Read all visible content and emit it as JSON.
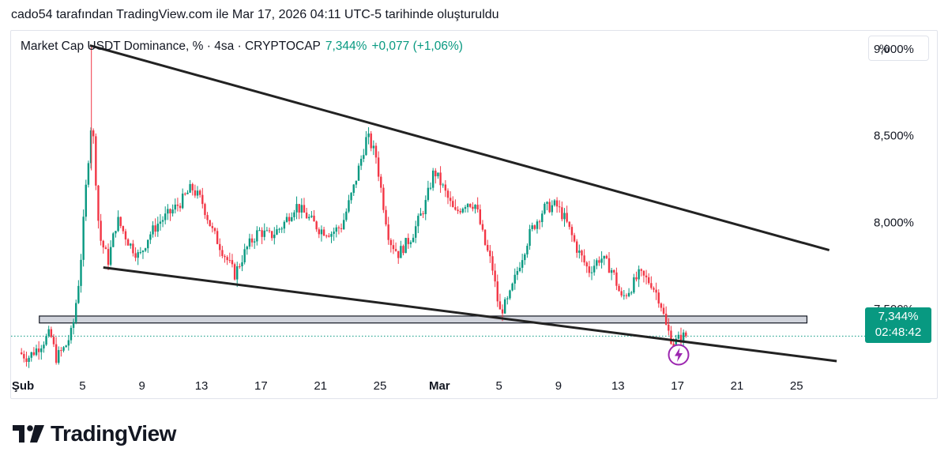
{
  "header": {
    "credit": "cado54 tarafından TradingView.com ile Mar 17, 2026 04:11 UTC-5 tarihinde oluşturuldu"
  },
  "legend": {
    "symbol": "Market Cap USDT Dominance, % · 4sa · CRYPTOCAP",
    "value": "7,344%",
    "change": "+0,077 (+1,06%)"
  },
  "scale_button": "%",
  "price_tag": {
    "value": "7,344%",
    "countdown": "02:48:42"
  },
  "brand": {
    "name": "TradingView"
  },
  "colors": {
    "up": "#089981",
    "down": "#f23645",
    "line": "#222222",
    "zone_fill": "#d1d4dc"
  },
  "chart_data": {
    "type": "candlestick",
    "title": "Market Cap USDT Dominance, % · 4sa · CRYPTOCAP",
    "y_ticks": [
      "9,000%",
      "8,500%",
      "8,000%",
      "7,500%"
    ],
    "y_tick_values": [
      9.0,
      8.5,
      8.0,
      7.5
    ],
    "ylim": [
      7.15,
      9.1
    ],
    "x_ticks": [
      "Şub",
      "5",
      "9",
      "13",
      "17",
      "21",
      "25",
      "Mar",
      "5",
      "9",
      "13",
      "17",
      "21",
      "25"
    ],
    "x_tick_days": [
      1,
      5,
      9,
      13,
      17,
      21,
      25,
      29,
      33,
      37,
      41,
      45,
      49,
      53
    ],
    "x_domain_days": [
      0.2,
      57.5
    ],
    "last_price": 7.344,
    "price_path": [
      [
        0.9,
        7.25
      ],
      [
        1.5,
        7.22
      ],
      [
        2.2,
        7.28
      ],
      [
        3.0,
        7.36
      ],
      [
        3.4,
        7.22
      ],
      [
        4.0,
        7.28
      ],
      [
        4.5,
        7.38
      ],
      [
        5.0,
        7.72
      ],
      [
        5.4,
        8.2
      ],
      [
        5.8,
        8.62
      ],
      [
        6.3,
        7.92
      ],
      [
        6.9,
        7.78
      ],
      [
        7.5,
        8.02
      ],
      [
        8.3,
        7.88
      ],
      [
        9.0,
        7.8
      ],
      [
        9.6,
        7.92
      ],
      [
        10.3,
        8.0
      ],
      [
        11.0,
        8.05
      ],
      [
        11.8,
        8.12
      ],
      [
        12.5,
        8.2
      ],
      [
        13.2,
        8.12
      ],
      [
        13.9,
        7.95
      ],
      [
        14.8,
        7.8
      ],
      [
        15.4,
        7.7
      ],
      [
        16.2,
        7.85
      ],
      [
        17.0,
        7.95
      ],
      [
        17.8,
        7.92
      ],
      [
        18.6,
        7.98
      ],
      [
        19.5,
        8.1
      ],
      [
        20.2,
        8.04
      ],
      [
        21.1,
        7.96
      ],
      [
        21.9,
        7.94
      ],
      [
        22.6,
        7.98
      ],
      [
        23.4,
        8.2
      ],
      [
        24.3,
        8.5
      ],
      [
        24.9,
        8.38
      ],
      [
        25.4,
        8.1
      ],
      [
        25.8,
        7.9
      ],
      [
        26.4,
        7.82
      ],
      [
        27.3,
        7.92
      ],
      [
        28.2,
        8.1
      ],
      [
        28.8,
        8.3
      ],
      [
        29.4,
        8.2
      ],
      [
        30.2,
        8.05
      ],
      [
        31.0,
        8.12
      ],
      [
        31.6,
        8.1
      ],
      [
        32.2,
        7.88
      ],
      [
        32.7,
        7.75
      ],
      [
        33.2,
        7.48
      ],
      [
        33.8,
        7.55
      ],
      [
        34.5,
        7.75
      ],
      [
        35.3,
        7.95
      ],
      [
        36.2,
        8.08
      ],
      [
        37.0,
        8.1
      ],
      [
        37.6,
        8.02
      ],
      [
        38.4,
        7.85
      ],
      [
        39.2,
        7.72
      ],
      [
        40.0,
        7.8
      ],
      [
        40.8,
        7.72
      ],
      [
        41.4,
        7.56
      ],
      [
        42.0,
        7.62
      ],
      [
        42.6,
        7.7
      ],
      [
        43.4,
        7.65
      ],
      [
        44.0,
        7.55
      ],
      [
        44.4,
        7.4
      ],
      [
        44.9,
        7.3
      ],
      [
        45.3,
        7.33
      ],
      [
        45.6,
        7.344
      ]
    ],
    "annotations": {
      "upper_trendline": [
        [
          5.5,
          9.02
        ],
        [
          55.2,
          7.84
        ]
      ],
      "lower_trendline": [
        [
          6.4,
          7.74
        ],
        [
          55.7,
          7.2
        ]
      ],
      "support_zone": [
        7.42,
        7.46
      ],
      "zone_x_days": [
        2.1,
        53.7
      ]
    }
  }
}
